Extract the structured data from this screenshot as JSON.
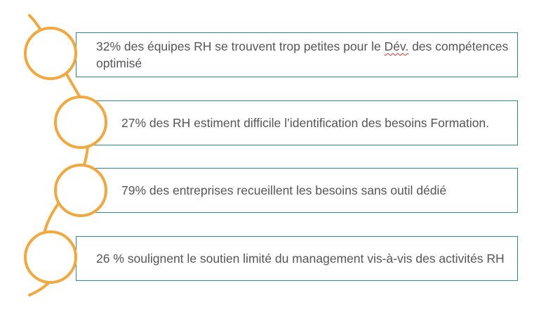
{
  "colors": {
    "accent_orange": "#f0a840",
    "box_border": "#2f8c8c",
    "text": "#555555",
    "spell_underline": "#e03030"
  },
  "items": [
    {
      "text_before": "32% des équipes RH se trouvent trop petites pour le ",
      "text_flagged": "Dév.",
      "text_after": " des compétences optimisé"
    },
    {
      "text_before": "27% des RH estiment difficile l’identification des besoins Formation.",
      "text_flagged": "",
      "text_after": ""
    },
    {
      "text_before": "79% des entreprises recueillent les besoins sans outil dédié",
      "text_flagged": "",
      "text_after": ""
    },
    {
      "text_before": "26 % soulignent le soutien limité du management vis-à-vis des activités RH",
      "text_flagged": "",
      "text_after": ""
    }
  ]
}
